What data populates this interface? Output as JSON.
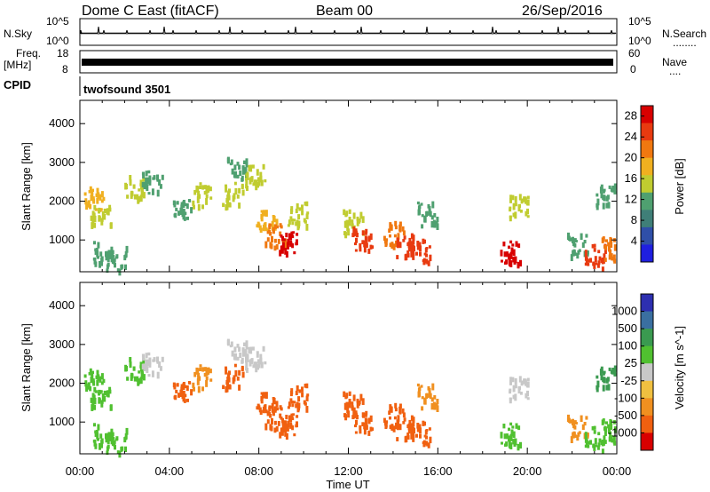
{
  "header": {
    "title": "Dome C East (fitACF)",
    "beam": "Beam 00",
    "date": "26/Sep/2016"
  },
  "nsky_panel": {
    "left_label": "N.Sky",
    "right_label": "N.Search",
    "right_dots": "........",
    "left_ticks": [
      "10^5",
      "10^0"
    ],
    "right_ticks": [
      "10^5",
      "10^0"
    ]
  },
  "freq_panel": {
    "left_label_line1": "Freq.",
    "left_label_line2": "[MHz]",
    "right_label": "Nave",
    "right_dots": "....",
    "left_ticks": [
      "18",
      "8"
    ],
    "right_ticks": [
      "60",
      "0"
    ]
  },
  "cpid_panel": {
    "label": "CPID",
    "program": "twofsound 3501"
  },
  "colors": {
    "power_scale": [
      "#1f1fe0",
      "#2f4fa8",
      "#3f7f78",
      "#4fa070",
      "#c0cc30",
      "#f0b020",
      "#f07810",
      "#e83a10",
      "#d80000"
    ],
    "velocity_scale": [
      "#d80000",
      "#f06010",
      "#f09020",
      "#f0c040",
      "#c8c8c8",
      "#50c030",
      "#3a9a50",
      "#3a6fa0",
      "#2d2fb0"
    ]
  },
  "chart_data": [
    {
      "type": "heatmap",
      "title": "",
      "xlabel": "",
      "ylabel": "Slant Range [km]",
      "xlim": [
        0,
        24
      ],
      "ylim": [
        180,
        4600
      ],
      "yticks": [
        "1000",
        "2000",
        "3000",
        "4000"
      ],
      "xticks": [
        "00:00",
        "04:00",
        "08:00",
        "12:00",
        "16:00",
        "20:00",
        "00:00"
      ],
      "colorbar": {
        "label": "Power [dB]",
        "ticks": [
          "4",
          "8",
          "12",
          "16",
          "20",
          "24",
          "28"
        ],
        "range": [
          0,
          30
        ]
      },
      "blobs": [
        {
          "t": 0.6,
          "r": 2100,
          "value": 18
        },
        {
          "t": 0.9,
          "r": 1700,
          "value": 14
        },
        {
          "t": 1.0,
          "r": 700,
          "value": 10
        },
        {
          "t": 1.6,
          "r": 550,
          "value": 12
        },
        {
          "t": 2.4,
          "r": 2400,
          "value": 16
        },
        {
          "t": 3.2,
          "r": 2500,
          "value": 10
        },
        {
          "t": 4.5,
          "r": 1800,
          "value": 12
        },
        {
          "t": 5.4,
          "r": 2200,
          "value": 14
        },
        {
          "t": 6.8,
          "r": 2200,
          "value": 16
        },
        {
          "t": 7.0,
          "r": 2900,
          "value": 12
        },
        {
          "t": 7.8,
          "r": 2700,
          "value": 16
        },
        {
          "t": 8.3,
          "r": 1500,
          "value": 18
        },
        {
          "t": 8.7,
          "r": 1150,
          "value": 22
        },
        {
          "t": 9.3,
          "r": 950,
          "value": 28
        },
        {
          "t": 9.7,
          "r": 1700,
          "value": 14
        },
        {
          "t": 12.2,
          "r": 1500,
          "value": 16
        },
        {
          "t": 12.6,
          "r": 1050,
          "value": 24
        },
        {
          "t": 14.0,
          "r": 1200,
          "value": 22
        },
        {
          "t": 14.5,
          "r": 900,
          "value": 26
        },
        {
          "t": 15.2,
          "r": 750,
          "value": 24
        },
        {
          "t": 15.5,
          "r": 1700,
          "value": 12
        },
        {
          "t": 19.2,
          "r": 700,
          "value": 28
        },
        {
          "t": 19.6,
          "r": 1900,
          "value": 14
        },
        {
          "t": 22.2,
          "r": 900,
          "value": 10
        },
        {
          "t": 23.0,
          "r": 600,
          "value": 26
        },
        {
          "t": 23.5,
          "r": 2200,
          "value": 12
        },
        {
          "t": 23.7,
          "r": 800,
          "value": 22
        }
      ]
    },
    {
      "type": "heatmap",
      "title": "",
      "xlabel": "Time UT",
      "ylabel": "Slant Range [km]",
      "xlim": [
        0,
        24
      ],
      "ylim": [
        180,
        4600
      ],
      "yticks": [
        "1000",
        "2000",
        "3000",
        "4000"
      ],
      "xticks": [
        "00:00",
        "04:00",
        "08:00",
        "12:00",
        "16:00",
        "20:00",
        "00:00"
      ],
      "colorbar": {
        "label": "Velocity [m s^-1]",
        "ticks": [
          "1000",
          "500",
          "100",
          "25",
          "-25",
          "-100",
          "-500",
          "-1000"
        ]
      },
      "blobs": [
        {
          "t": 0.6,
          "r": 2100,
          "value": 100
        },
        {
          "t": 0.9,
          "r": 1700,
          "value": 100
        },
        {
          "t": 1.0,
          "r": 700,
          "value": 100
        },
        {
          "t": 1.6,
          "r": 550,
          "value": 100
        },
        {
          "t": 2.4,
          "r": 2400,
          "value": 100
        },
        {
          "t": 3.2,
          "r": 2500,
          "value": 0
        },
        {
          "t": 4.5,
          "r": 1800,
          "value": -500
        },
        {
          "t": 5.4,
          "r": 2200,
          "value": -100
        },
        {
          "t": 6.8,
          "r": 2200,
          "value": -500
        },
        {
          "t": 7.0,
          "r": 2900,
          "value": 0
        },
        {
          "t": 7.8,
          "r": 2700,
          "value": 0
        },
        {
          "t": 8.3,
          "r": 1500,
          "value": -500
        },
        {
          "t": 8.7,
          "r": 1150,
          "value": -500
        },
        {
          "t": 9.3,
          "r": 950,
          "value": -500
        },
        {
          "t": 9.7,
          "r": 1700,
          "value": -500
        },
        {
          "t": 12.2,
          "r": 1500,
          "value": -500
        },
        {
          "t": 12.6,
          "r": 1050,
          "value": -500
        },
        {
          "t": 14.0,
          "r": 1200,
          "value": -500
        },
        {
          "t": 14.5,
          "r": 900,
          "value": -500
        },
        {
          "t": 15.2,
          "r": 750,
          "value": -500
        },
        {
          "t": 15.5,
          "r": 1700,
          "value": -100
        },
        {
          "t": 19.2,
          "r": 700,
          "value": 100
        },
        {
          "t": 19.6,
          "r": 1900,
          "value": 0
        },
        {
          "t": 22.2,
          "r": 900,
          "value": -100
        },
        {
          "t": 23.0,
          "r": 600,
          "value": 100
        },
        {
          "t": 23.5,
          "r": 2200,
          "value": 500
        },
        {
          "t": 23.7,
          "r": 800,
          "value": 100
        }
      ]
    }
  ]
}
